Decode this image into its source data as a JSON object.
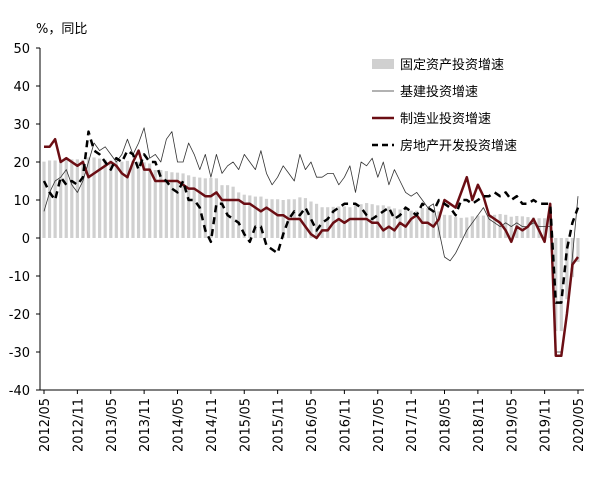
{
  "chart_data": {
    "type": "line",
    "y_label": "%，同比",
    "categories": [
      "2012/05",
      null,
      null,
      null,
      null,
      null,
      "2012/11",
      null,
      null,
      null,
      null,
      null,
      "2013/05",
      null,
      null,
      null,
      null,
      null,
      "2013/11",
      null,
      null,
      null,
      null,
      null,
      "2014/05",
      null,
      null,
      null,
      null,
      null,
      "2014/11",
      null,
      null,
      null,
      null,
      null,
      "2015/05",
      null,
      null,
      null,
      null,
      null,
      "2015/11",
      null,
      null,
      null,
      null,
      null,
      "2016/05",
      null,
      null,
      null,
      null,
      null,
      "2016/11",
      null,
      null,
      null,
      null,
      null,
      "2017/05",
      null,
      null,
      null,
      null,
      null,
      "2017/11",
      null,
      null,
      null,
      null,
      null,
      "2018/05",
      null,
      null,
      null,
      null,
      null,
      "2018/11",
      null,
      null,
      null,
      null,
      null,
      "2019/05",
      null,
      null,
      null,
      null,
      null,
      "2019/11",
      null,
      null,
      null,
      null,
      null,
      "2020/05"
    ],
    "ylim": [
      -40,
      50
    ],
    "yticks": [
      50,
      40,
      30,
      20,
      10,
      0,
      -10,
      -20,
      -30,
      -40
    ],
    "series": [
      {
        "name": "固定资产投资增速",
        "type": "bar",
        "color": "#d0d0d0",
        "values": [
          20.1,
          20.4,
          20.4,
          20.2,
          20.5,
          20.7,
          20.7,
          20.6,
          21.2,
          21.2,
          20.9,
          20.6,
          20.4,
          20.1,
          20.1,
          20.3,
          20.2,
          20.1,
          19.9,
          19.6,
          17.9,
          17.9,
          17.6,
          17.3,
          17.2,
          17.0,
          16.5,
          16.1,
          15.9,
          15.7,
          15.8,
          15.7,
          13.9,
          13.9,
          13.5,
          12.0,
          11.4,
          11.2,
          10.9,
          10.9,
          10.3,
          10.2,
          10.2,
          10.0,
          10.2,
          10.2,
          10.7,
          10.5,
          9.6,
          9.0,
          8.1,
          8.1,
          8.2,
          8.3,
          8.3,
          8.1,
          8.9,
          8.9,
          9.2,
          8.9,
          8.6,
          8.6,
          8.3,
          7.8,
          7.5,
          7.3,
          7.2,
          7.2,
          7.9,
          7.9,
          7.5,
          7.0,
          6.1,
          6.0,
          5.5,
          5.3,
          5.4,
          5.7,
          5.9,
          5.9,
          6.1,
          6.1,
          6.3,
          6.1,
          5.6,
          5.8,
          5.7,
          5.5,
          5.4,
          5.2,
          5.2,
          5.4,
          -24.5,
          -24.5,
          -16.1,
          -10.3,
          -6.3
        ]
      },
      {
        "name": "基建投资增速",
        "color": "#333333",
        "width": 0.8,
        "values": [
          7,
          12,
          15,
          16,
          18,
          14,
          12,
          15,
          20,
          25,
          23,
          24,
          22,
          20,
          22,
          26,
          22,
          25,
          29,
          21,
          22,
          20,
          26,
          28,
          20,
          20,
          25,
          22,
          18,
          22,
          16,
          22,
          17,
          19,
          20,
          18,
          22,
          20,
          18,
          23,
          17,
          14,
          16,
          19,
          17,
          15,
          22,
          18,
          20,
          16,
          16,
          17,
          17,
          14,
          16,
          19,
          12,
          20,
          19,
          21,
          16,
          20,
          14,
          18,
          15,
          12,
          11,
          12,
          10,
          8,
          9,
          2,
          -5,
          -6,
          -4,
          -1,
          2,
          4,
          6,
          8,
          5,
          4,
          3,
          4,
          3,
          4,
          3,
          3,
          4,
          3,
          3,
          3,
          -30,
          -30,
          -20,
          -5,
          11
        ]
      },
      {
        "name": "制造业投资增速",
        "color": "#6b0e14",
        "width": 2.5,
        "values": [
          24,
          24,
          26,
          20,
          21,
          20,
          19,
          20,
          16,
          17,
          18,
          19,
          20,
          19,
          17,
          16,
          20,
          23,
          18,
          18,
          15,
          15,
          15,
          15,
          15,
          14,
          13,
          13,
          12,
          11,
          11,
          12,
          10,
          10,
          10,
          10,
          9,
          9,
          8,
          7,
          8,
          7,
          6,
          6,
          5,
          5,
          5,
          3,
          1,
          0,
          2,
          2,
          4,
          5,
          4,
          5,
          5,
          5,
          5,
          4,
          4,
          2,
          3,
          2,
          4,
          3,
          5,
          6,
          4,
          4,
          3,
          5,
          10,
          9,
          8,
          12,
          16,
          10,
          14,
          11,
          6,
          5,
          4,
          2,
          -1,
          3,
          2,
          3,
          5,
          2,
          -1,
          9,
          -31,
          -31,
          -20,
          -7,
          -5
        ]
      },
      {
        "name": "房地产开发投资增速",
        "color": "#000000",
        "width": 2.5,
        "dashed": true,
        "values": [
          15,
          12,
          10,
          16,
          14,
          15,
          14,
          16,
          28,
          23,
          22,
          20,
          18,
          21,
          20,
          23,
          22,
          18,
          22,
          20,
          20,
          16,
          15,
          13,
          12,
          15,
          10,
          10,
          8,
          2,
          -1,
          9,
          9,
          6,
          5,
          4,
          1,
          -1,
          3,
          3,
          -2,
          -3,
          -4,
          1,
          5,
          7,
          6,
          8,
          5,
          2,
          4,
          5,
          7,
          8,
          9,
          9,
          9,
          8,
          6,
          5,
          6,
          7,
          8,
          5,
          6,
          8,
          7,
          6,
          9,
          8,
          7,
          10,
          9,
          8,
          6,
          10,
          10,
          9,
          10,
          11,
          11,
          12,
          11,
          12,
          10,
          11,
          9,
          9,
          10,
          9,
          9,
          9,
          -17,
          -17,
          -3,
          4,
          8
        ]
      }
    ]
  }
}
